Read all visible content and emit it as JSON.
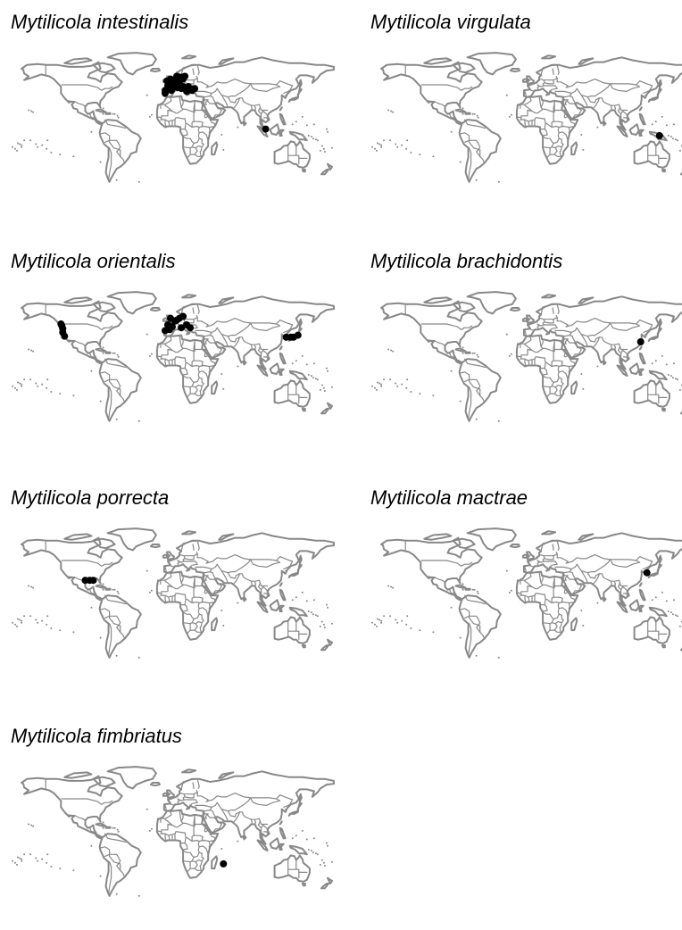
{
  "map_style": {
    "land_outline_color": "#888888",
    "point_color": "#000000",
    "background": "#ffffff"
  },
  "panels": [
    {
      "title": "Mytilicola intestinalis",
      "occurrences": [
        [
          -8,
          43
        ],
        [
          -5,
          48
        ],
        [
          -3,
          50
        ],
        [
          0,
          45
        ],
        [
          2,
          51
        ],
        [
          4,
          52
        ],
        [
          6,
          53
        ],
        [
          8,
          55
        ],
        [
          10,
          57
        ],
        [
          12,
          55
        ],
        [
          14,
          58
        ],
        [
          5,
          58
        ],
        [
          -2,
          55
        ],
        [
          -6,
          53
        ],
        [
          10,
          45
        ],
        [
          14,
          45
        ],
        [
          16,
          42
        ],
        [
          20,
          45
        ],
        [
          25,
          45
        ],
        [
          0,
          47
        ],
        [
          -1,
          43
        ],
        [
          8,
          50
        ],
        [
          -4,
          51
        ],
        [
          3,
          54
        ],
        [
          18,
          47
        ],
        [
          22,
          43
        ],
        [
          6,
          46
        ],
        [
          12,
          47
        ],
        [
          -8,
          40
        ],
        [
          104,
          2
        ]
      ]
    },
    {
      "title": "Mytilicola virgulata",
      "occurrences": [
        [
          142,
          -5
        ]
      ]
    },
    {
      "title": "Mytilicola orientalis",
      "occurrences": [
        [
          -124,
          49
        ],
        [
          -123,
          47
        ],
        [
          -122,
          44
        ],
        [
          -122,
          40
        ],
        [
          -120,
          36
        ],
        [
          -5,
          48
        ],
        [
          0,
          46
        ],
        [
          3,
          52
        ],
        [
          8,
          55
        ],
        [
          12,
          57
        ],
        [
          5,
          53
        ],
        [
          10,
          45
        ],
        [
          -3,
          43
        ],
        [
          16,
          48
        ],
        [
          -8,
          42
        ],
        [
          -2,
          55
        ],
        [
          20,
          45
        ],
        [
          127,
          35
        ],
        [
          132,
          35
        ],
        [
          135,
          35
        ],
        [
          140,
          37
        ]
      ]
    },
    {
      "title": "Mytilicola brachidontis",
      "occurrences": [
        [
          121,
          30
        ]
      ]
    },
    {
      "title": "Mytilicola porrecta",
      "occurrences": [
        [
          -97,
          28
        ],
        [
          -92,
          28
        ],
        [
          -88,
          28
        ]
      ]
    },
    {
      "title": "Mytilicola mactrae",
      "occurrences": [
        [
          128,
          36
        ]
      ]
    },
    {
      "title": "Mytilicola fimbriatus",
      "occurrences": [
        [
          57,
          -20
        ]
      ]
    }
  ]
}
